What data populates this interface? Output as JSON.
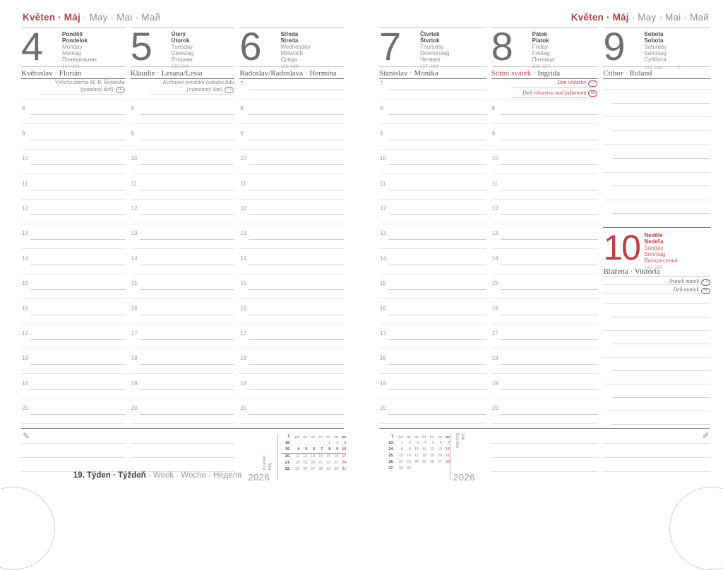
{
  "colors": {
    "accent_red": "#b8414b",
    "ink": "#4c4c4c",
    "muted": "#8f8f8f"
  },
  "month_header": {
    "bold": "Květen · Máj",
    "rest": " · May · Mai · Май"
  },
  "week_footer": {
    "bold": "19. Týden · Týždeň",
    "rest": " · Week · Woche · Неделя"
  },
  "hours": [
    "7",
    "8",
    "9",
    "10",
    "11",
    "12",
    "13",
    "14",
    "15",
    "16",
    "17",
    "18",
    "19",
    "20"
  ],
  "icons": {
    "moon": "☾",
    "pencil": "✎"
  },
  "days": [
    {
      "num": "4",
      "bold_names": [
        "Pondělí",
        "Pondelok"
      ],
      "names": [
        "Monday",
        "Montag",
        "Понедельник"
      ],
      "day_of_year": "124–241",
      "nameday": "Květoslav · Florián",
      "nameday_red": "",
      "moon": false,
      "notes_red": false,
      "notes": [
        {
          "lines": [
            "Výročie úmrtia M. R. Štefánika",
            "(pamätný deň)"
          ],
          "badge": "SK"
        }
      ]
    },
    {
      "num": "5",
      "bold_names": [
        "Úterý",
        "Utorok"
      ],
      "names": [
        "Tuesday",
        "Dienstag",
        "Вторник"
      ],
      "day_of_year": "125–240",
      "nameday": "Klaudie · Lesana/Lesia",
      "nameday_red": "",
      "moon": false,
      "notes_red": false,
      "notes": [
        {
          "lines": [
            "Květnové povstání českého lidu",
            "(významný den)"
          ],
          "badge": "CZ"
        }
      ]
    },
    {
      "num": "6",
      "bold_names": [
        "Středa",
        "Streda"
      ],
      "names": [
        "Wednesday",
        "Mittwoch",
        "Среда"
      ],
      "day_of_year": "126–239",
      "nameday": "Radoslav/Radoslava · Hermína",
      "nameday_red": "",
      "moon": false,
      "notes_red": false,
      "notes": []
    },
    {
      "num": "7",
      "bold_names": [
        "Čtvrtek",
        "Štvrtok"
      ],
      "names": [
        "Thursday",
        "Donnerstag",
        "Четверг"
      ],
      "day_of_year": "127–238",
      "nameday": "Stanislav · Monika",
      "nameday_red": "",
      "moon": false,
      "notes_red": false,
      "notes": []
    },
    {
      "num": "8",
      "bold_names": [
        "Pátek",
        "Piatok"
      ],
      "names": [
        "Friday",
        "Freitag",
        "Пятница"
      ],
      "day_of_year": "128–237",
      "nameday": " · Ingrida",
      "nameday_red": "Státní svátek",
      "moon": false,
      "notes_red": true,
      "notes": [
        {
          "lines": [
            "Den vítězství"
          ],
          "badge": "CZ"
        },
        {
          "lines": [
            "Deň víťazstva nad fašizmom"
          ],
          "badge": "SK"
        }
      ]
    },
    {
      "num": "9",
      "bold_names": [
        "Sobota",
        "Sobota"
      ],
      "names": [
        "Saturday",
        "Samstag",
        "Суббота"
      ],
      "day_of_year": "129–236",
      "nameday": "Ctibor · Roland",
      "nameday_red": "",
      "moon": true,
      "notes_red": false,
      "notes": []
    }
  ],
  "sunday": {
    "num": "10",
    "bold_names": [
      "Neděle",
      "Nedeľa"
    ],
    "names": [
      "Sunday",
      "Sonntag",
      "Воскресенье"
    ],
    "day_of_year": "130–235",
    "nameday": "Blažena · Viktória",
    "notes": [
      {
        "lines": [
          "Svátek matek"
        ],
        "badge": "CZ"
      },
      {
        "lines": [
          "Deň matiek"
        ],
        "badge": "SK"
      }
    ]
  },
  "minical_left": {
    "month_label": "Květen\nMáj",
    "year": "2026",
    "week_header": "T.",
    "dow": [
      "PO",
      "ÚT",
      "ST",
      "ČT",
      "PÁ",
      "SO",
      "NE"
    ],
    "current_week": "19.",
    "rows": [
      {
        "week": "18.",
        "days": [
          "",
          "",
          "",
          "",
          "1",
          "2",
          "3"
        ]
      },
      {
        "week": "19.",
        "days": [
          "4",
          "5",
          "6",
          "7",
          "8",
          "9",
          "10"
        ]
      },
      {
        "week": "20.",
        "days": [
          "11",
          "12",
          "13",
          "14",
          "15",
          "16",
          "17"
        ]
      },
      {
        "week": "21.",
        "days": [
          "18",
          "19",
          "20",
          "21",
          "22",
          "23",
          "24"
        ]
      },
      {
        "week": "22.",
        "days": [
          "25",
          "26",
          "27",
          "28",
          "29",
          "30",
          "31"
        ]
      }
    ]
  },
  "minical_right": {
    "month_label": "Červen\nJún",
    "year": "2026",
    "week_header": "T.",
    "dow": [
      "PO",
      "ÚT",
      "ST",
      "ČT",
      "PÁ",
      "SO",
      "NE"
    ],
    "current_week": "",
    "rows": [
      {
        "week": "23.",
        "days": [
          "1",
          "2",
          "3",
          "4",
          "5",
          "6",
          "7"
        ]
      },
      {
        "week": "24.",
        "days": [
          "8",
          "9",
          "10",
          "11",
          "12",
          "13",
          "14"
        ]
      },
      {
        "week": "25.",
        "days": [
          "15",
          "16",
          "17",
          "18",
          "19",
          "20",
          "21"
        ]
      },
      {
        "week": "26.",
        "days": [
          "22",
          "23",
          "24",
          "25",
          "26",
          "27",
          "28"
        ]
      },
      {
        "week": "27.",
        "days": [
          "29",
          "30",
          "",
          "",
          "",
          "",
          ""
        ]
      }
    ]
  }
}
